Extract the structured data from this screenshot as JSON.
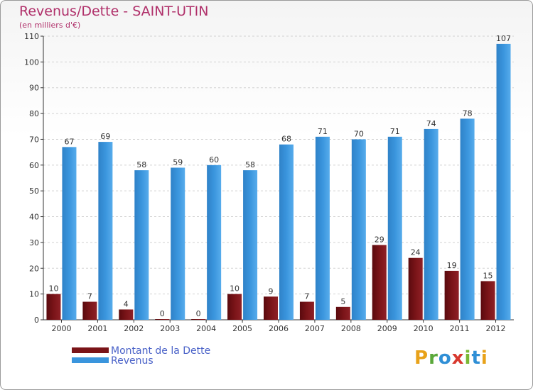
{
  "title": "Revenus/Dette - SAINT-UTIN",
  "subtitle": "(en milliers d'€)",
  "logo_text": "Proxiti",
  "chart_data": {
    "type": "bar",
    "title": "Revenus/Dette - SAINT-UTIN",
    "subtitle": "(en milliers d'€)",
    "categories": [
      "2000",
      "2001",
      "2002",
      "2003",
      "2004",
      "2005",
      "2006",
      "2007",
      "2008",
      "2009",
      "2010",
      "2011",
      "2012"
    ],
    "series": [
      {
        "name": "Montant de la Dette",
        "color": "#7a1418",
        "values": [
          10,
          7,
          4,
          0,
          0,
          10,
          9,
          7,
          5,
          29,
          24,
          19,
          15
        ]
      },
      {
        "name": "Revenus",
        "color": "#3a95dd",
        "values": [
          67,
          69,
          58,
          59,
          60,
          58,
          68,
          71,
          70,
          71,
          74,
          78,
          107
        ]
      }
    ],
    "ylim": [
      0,
      110
    ],
    "yticks": [
      0,
      10,
      20,
      30,
      40,
      50,
      60,
      70,
      80,
      90,
      100,
      110
    ],
    "grid": true,
    "legend_position": "bottom-left"
  },
  "colors": {
    "title": "#b0306a",
    "legend_text": "#4a62c8",
    "grid": "#d2d2d2",
    "axis": "#333333"
  }
}
